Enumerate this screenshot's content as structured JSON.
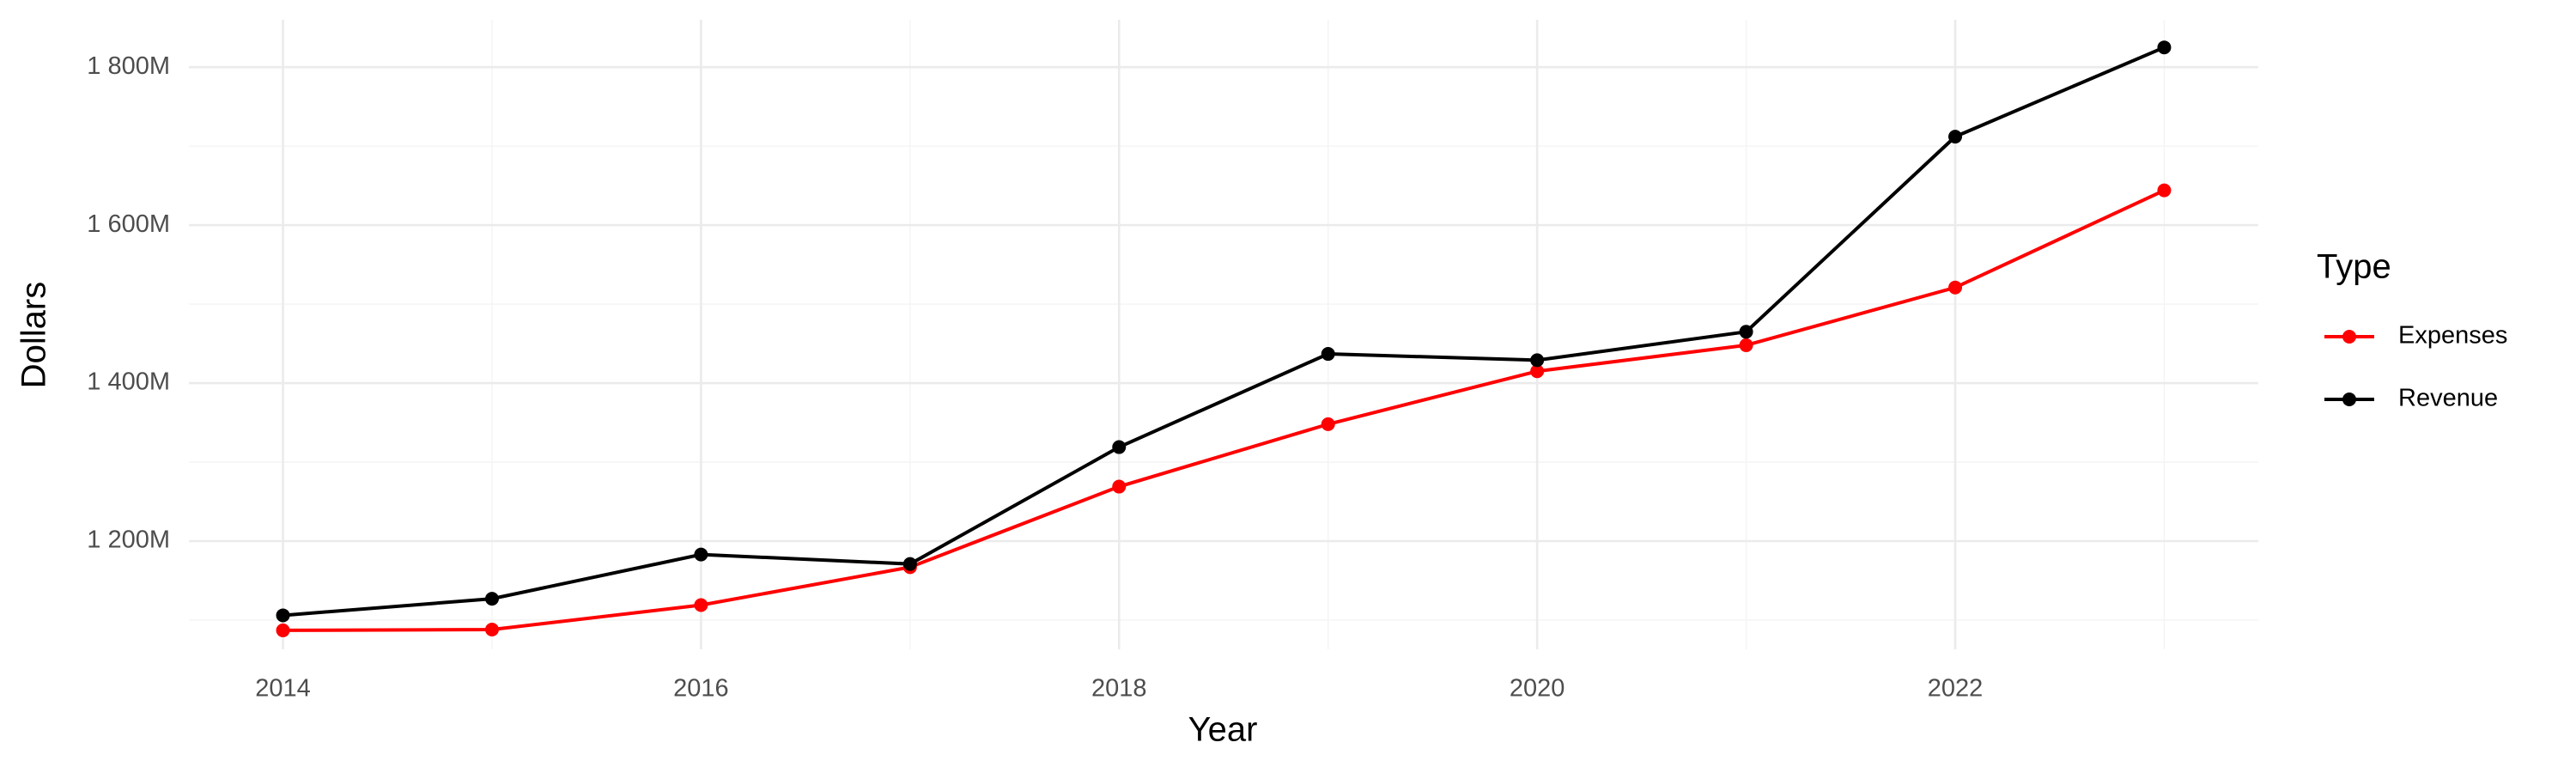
{
  "chart_data": {
    "type": "line",
    "x_label": "Year",
    "y_label": "Dollars",
    "x": [
      2014,
      2015,
      2016,
      2017,
      2018,
      2019,
      2020,
      2021,
      2022,
      2023
    ],
    "series": [
      {
        "name": "Expenses",
        "color": "#ff0000",
        "values": [
          1087000000,
          1088000000,
          1119000000,
          1167000000,
          1269000000,
          1348000000,
          1415000000,
          1448000000,
          1521000000,
          1644000000
        ]
      },
      {
        "name": "Revenue",
        "color": "#000000",
        "values": [
          1106000000,
          1127000000,
          1183000000,
          1171000000,
          1319000000,
          1437000000,
          1429000000,
          1465000000,
          1712000000,
          1825000000
        ]
      }
    ],
    "xlim": [
      2013.55,
      2023.45
    ],
    "xticks": [
      2014,
      2016,
      2018,
      2020,
      2022
    ],
    "ylim": [
      1063000000,
      1860000000
    ],
    "yticks": [
      {
        "value": 1200000000,
        "label": "1 200M"
      },
      {
        "value": 1400000000,
        "label": "1 400M"
      },
      {
        "value": 1600000000,
        "label": "1 600M"
      },
      {
        "value": 1800000000,
        "label": "1 800M"
      }
    ],
    "grid": true,
    "legend_title": "Type",
    "legend_position": "right"
  }
}
